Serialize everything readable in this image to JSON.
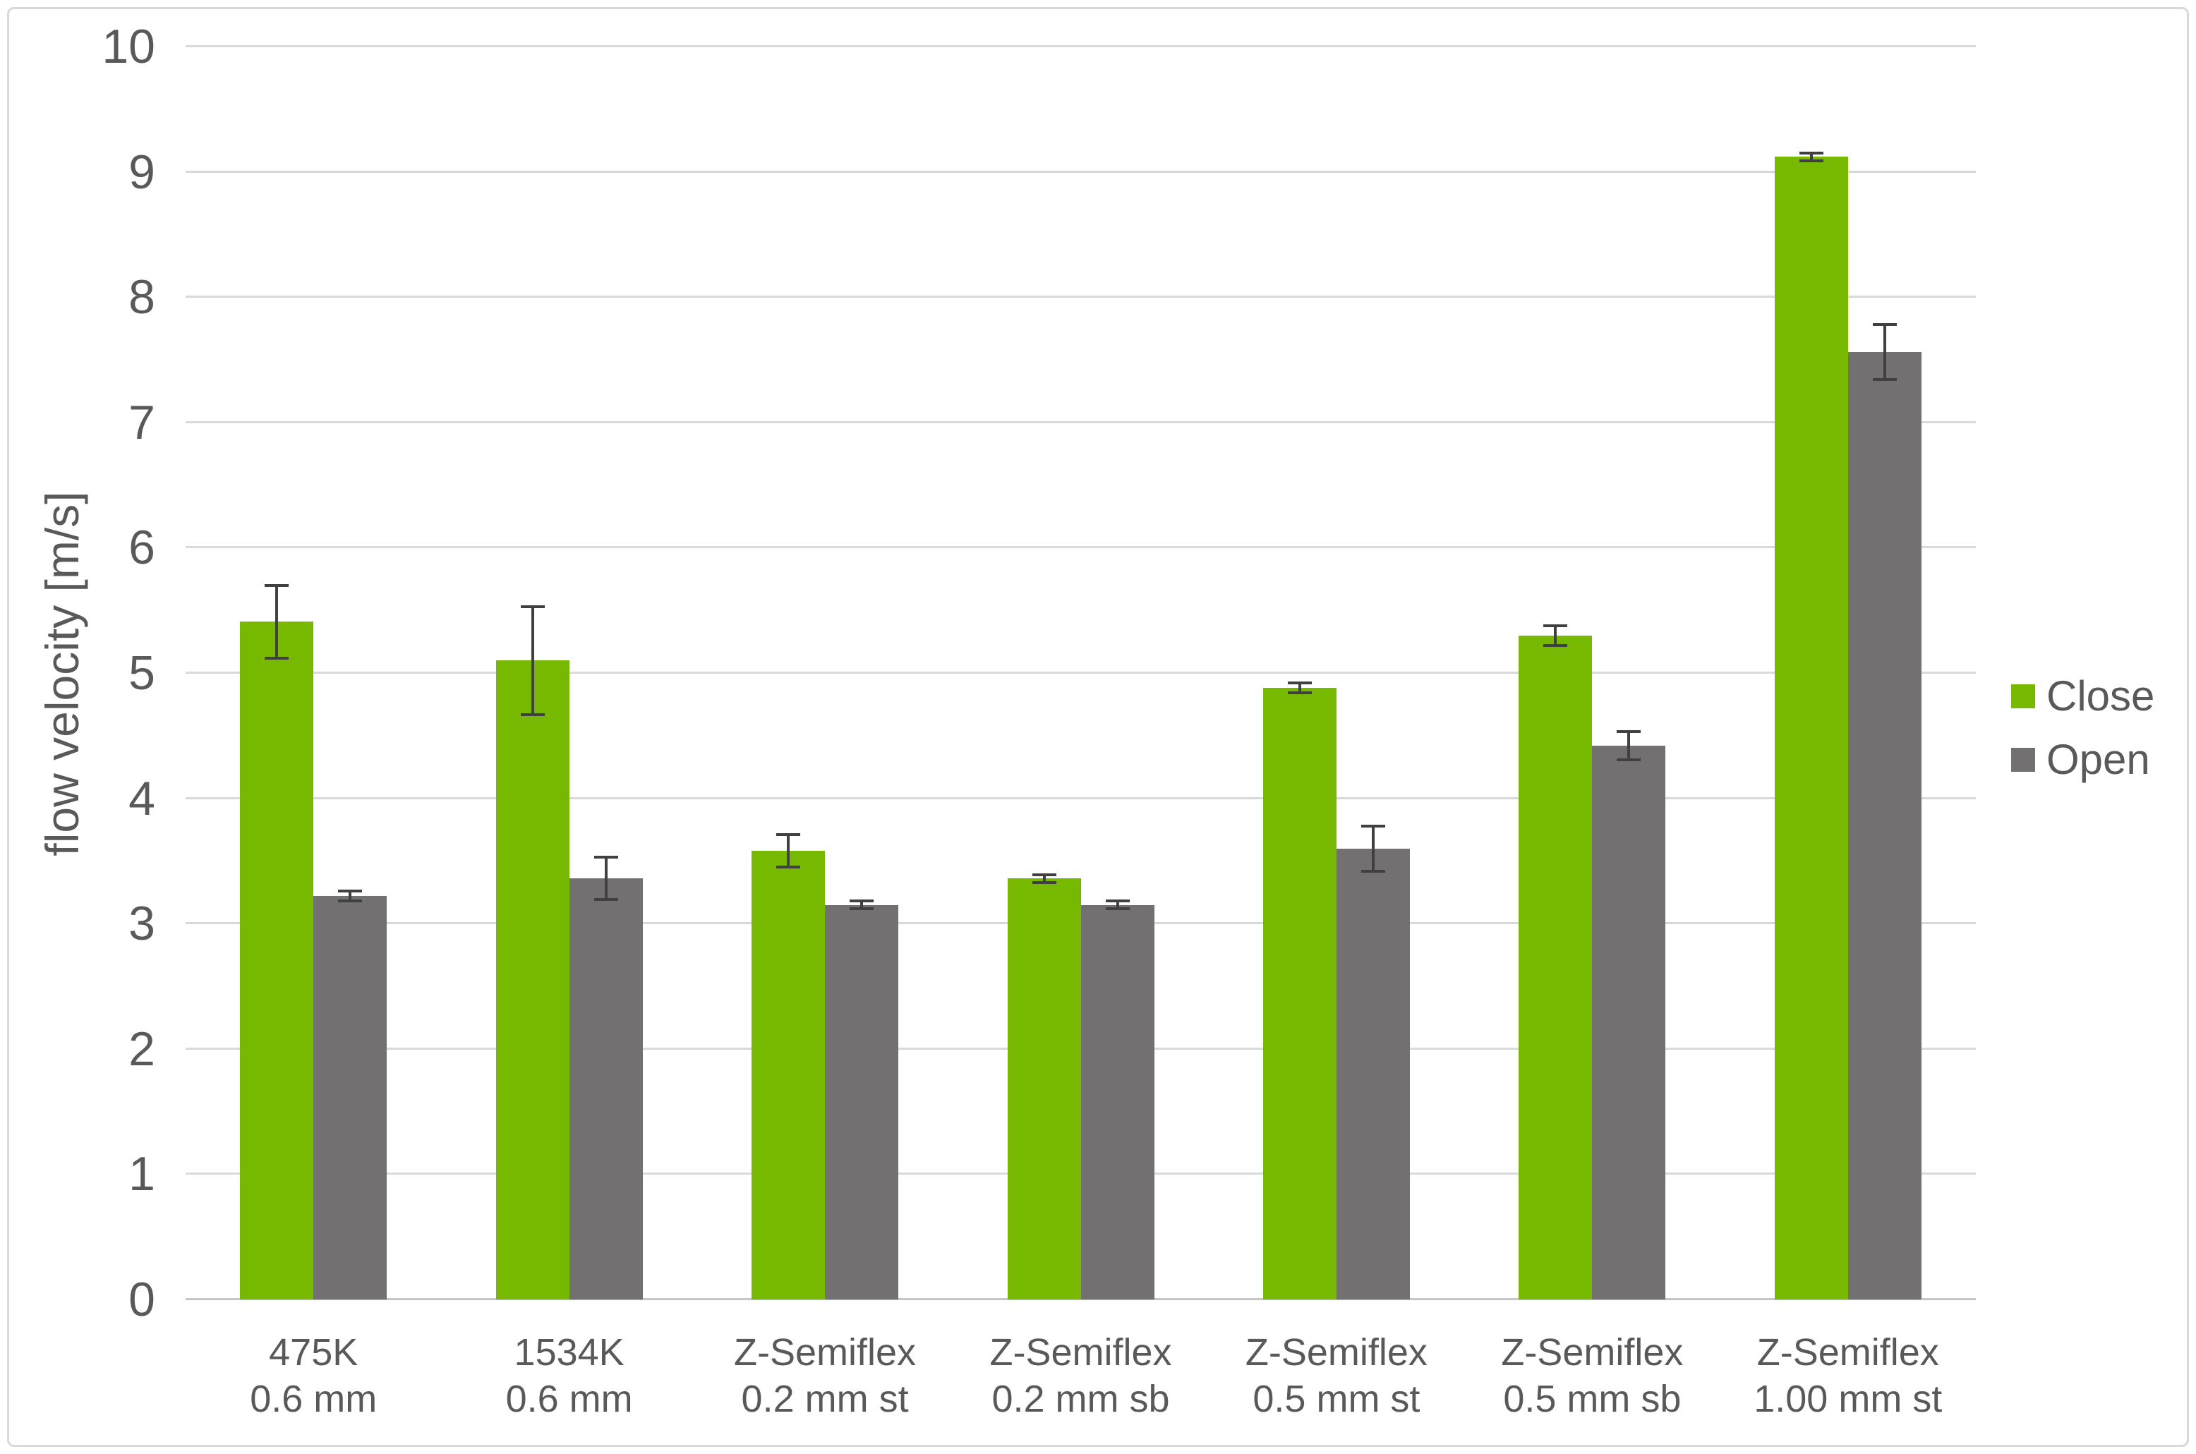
{
  "chart_data": {
    "type": "bar",
    "title": "",
    "xlabel": "",
    "ylabel": "flow velocity [m/s]",
    "ylim": [
      0,
      10
    ],
    "y_ticks": [
      0,
      1,
      2,
      3,
      4,
      5,
      6,
      7,
      8,
      9,
      10
    ],
    "grid": true,
    "error_bars": true,
    "legend_position": "right-center",
    "categories": [
      {
        "line1": "475K",
        "line2": "0.6 mm"
      },
      {
        "line1": "1534K",
        "line2": "0.6 mm"
      },
      {
        "line1": "Z-Semiflex",
        "line2": "0.2 mm st"
      },
      {
        "line1": "Z-Semiflex",
        "line2": "0.2 mm sb"
      },
      {
        "line1": "Z-Semiflex",
        "line2": "0.5 mm st"
      },
      {
        "line1": "Z-Semiflex",
        "line2": "0.5 mm sb"
      },
      {
        "line1": "Z-Semiflex",
        "line2": "1.00 mm st"
      }
    ],
    "series": [
      {
        "name": "Close",
        "color": "#76b900",
        "values": [
          5.41,
          5.1,
          3.58,
          3.36,
          4.88,
          5.3,
          9.12
        ],
        "errors": [
          0.29,
          0.43,
          0.13,
          0.03,
          0.04,
          0.08,
          0.03
        ]
      },
      {
        "name": "Open",
        "color": "#727070",
        "values": [
          3.22,
          3.36,
          3.15,
          3.15,
          3.6,
          4.42,
          7.56
        ],
        "errors": [
          0.04,
          0.17,
          0.03,
          0.03,
          0.18,
          0.11,
          0.22
        ]
      }
    ],
    "style": {
      "gridline_color": "#d9d9d9",
      "baseline_color": "#c6c6c6",
      "text_color": "#595959",
      "error_bar_color": "#404040",
      "frame_color": "#d9d9d9",
      "background": "#ffffff"
    }
  }
}
